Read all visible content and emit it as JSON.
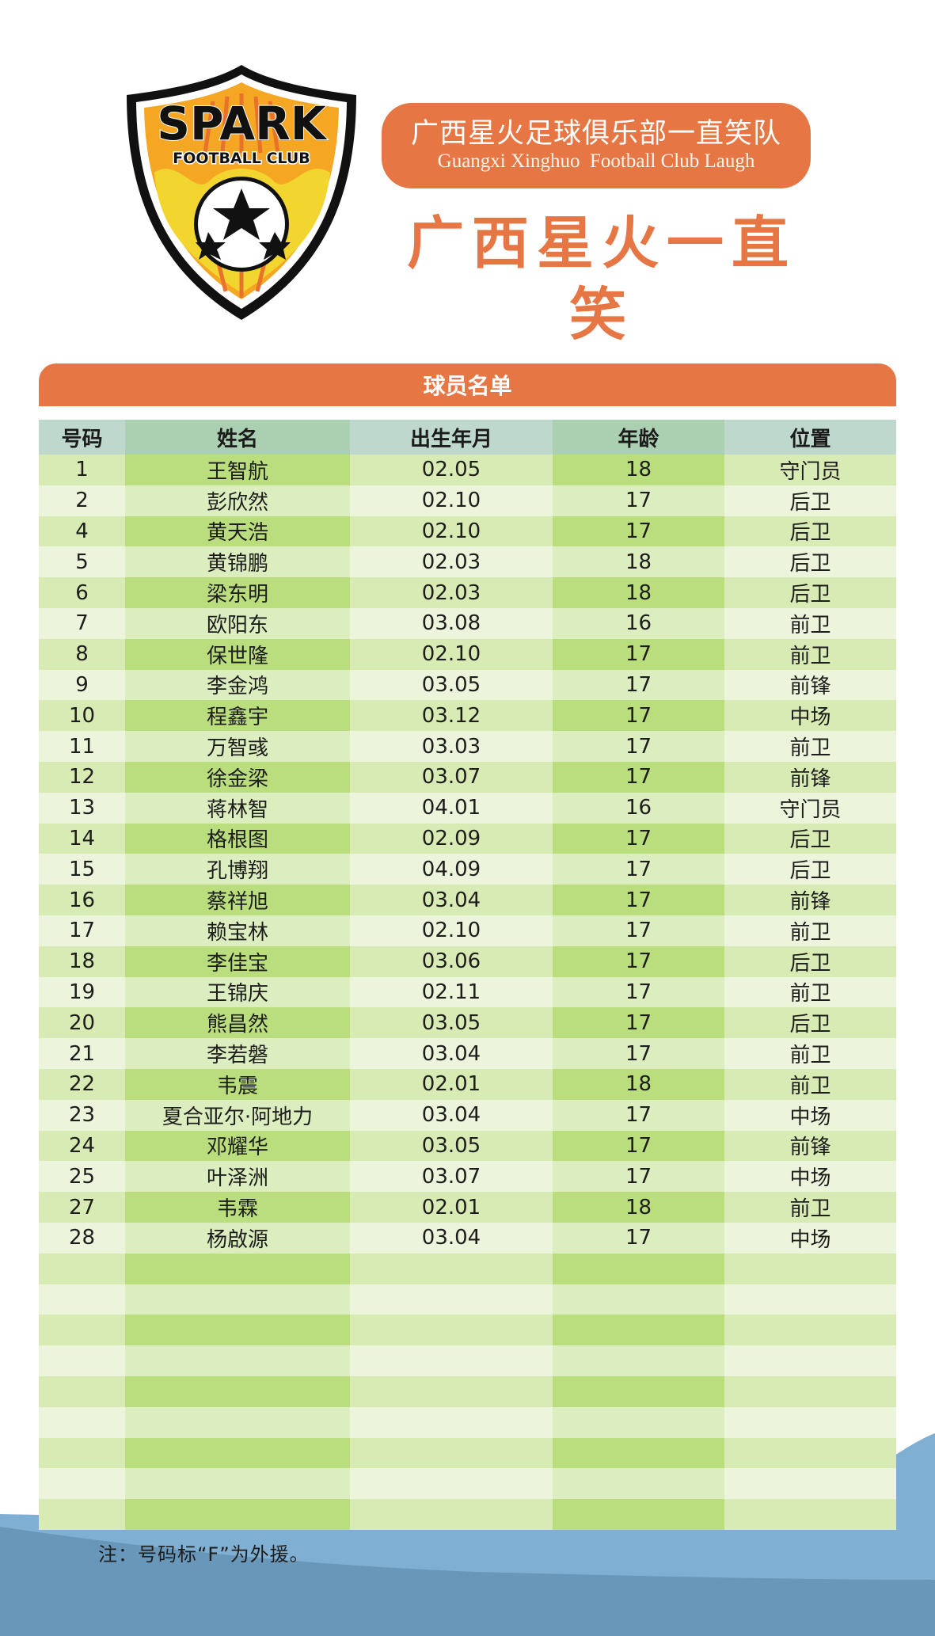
{
  "colors": {
    "accent_orange": "#e67744",
    "header_cell_a": "#bed8cd",
    "header_cell_b": "#abcfb1",
    "row_dark_a": "#d9ebb4",
    "row_dark_b": "#badd7d",
    "row_light_a": "#ecf5db",
    "row_light_b": "#dcedc0",
    "wave_light_blue": "#7fafd3",
    "wave_dark_blue": "#6897ba"
  },
  "logo": {
    "wordmark": "SPARK",
    "subtitle": "FOOTBALL CLUB",
    "icon": "shield-soccer-ball-crest"
  },
  "header": {
    "club_name_cn": "广西星火足球俱乐部一直笑队",
    "club_name_en": "Guangxi Xinghuo  Football Club Laugh",
    "team_title": "广西星火一直笑"
  },
  "roster": {
    "title": "球员名单",
    "columns": [
      "号码",
      "姓名",
      "出生年月",
      "年龄",
      "位置"
    ],
    "rows": [
      [
        "1",
        "王智航",
        "02.05",
        "18",
        "守门员"
      ],
      [
        "2",
        "彭欣然",
        "02.10",
        "17",
        "后卫"
      ],
      [
        "4",
        "黄天浩",
        "02.10",
        "17",
        "后卫"
      ],
      [
        "5",
        "黄锦鹏",
        "02.03",
        "18",
        "后卫"
      ],
      [
        "6",
        "梁东明",
        "02.03",
        "18",
        "后卫"
      ],
      [
        "7",
        "欧阳东",
        "03.08",
        "16",
        "前卫"
      ],
      [
        "8",
        "保世隆",
        "02.10",
        "17",
        "前卫"
      ],
      [
        "9",
        "李金鸿",
        "03.05",
        "17",
        "前锋"
      ],
      [
        "10",
        "程鑫宇",
        "03.12",
        "17",
        "中场"
      ],
      [
        "11",
        "万智彧",
        "03.03",
        "17",
        "前卫"
      ],
      [
        "12",
        "徐金梁",
        "03.07",
        "17",
        "前锋"
      ],
      [
        "13",
        "蒋林智",
        "04.01",
        "16",
        "守门员"
      ],
      [
        "14",
        "格根图",
        "02.09",
        "17",
        "后卫"
      ],
      [
        "15",
        "孔博翔",
        "04.09",
        "17",
        "后卫"
      ],
      [
        "16",
        "蔡祥旭",
        "03.04",
        "17",
        "前锋"
      ],
      [
        "17",
        "赖宝林",
        "02.10",
        "17",
        "前卫"
      ],
      [
        "18",
        "李佳宝",
        "03.06",
        "17",
        "后卫"
      ],
      [
        "19",
        "王锦庆",
        "02.11",
        "17",
        "前卫"
      ],
      [
        "20",
        "熊昌然",
        "03.05",
        "17",
        "后卫"
      ],
      [
        "21",
        "李若磐",
        "03.04",
        "17",
        "前卫"
      ],
      [
        "22",
        "韦震",
        "02.01",
        "18",
        "前卫"
      ],
      [
        "23",
        "夏合亚尔·阿地力",
        "03.04",
        "17",
        "中场"
      ],
      [
        "24",
        "邓耀华",
        "03.05",
        "17",
        "前锋"
      ],
      [
        "25",
        "叶泽洲",
        "03.07",
        "17",
        "中场"
      ],
      [
        "27",
        "韦霖",
        "02.01",
        "18",
        "前卫"
      ],
      [
        "28",
        "杨啟源",
        "03.04",
        "17",
        "中场"
      ],
      [
        "",
        "",
        "",
        "",
        ""
      ],
      [
        "",
        "",
        "",
        "",
        ""
      ],
      [
        "",
        "",
        "",
        "",
        ""
      ],
      [
        "",
        "",
        "",
        "",
        ""
      ],
      [
        "",
        "",
        "",
        "",
        ""
      ],
      [
        "",
        "",
        "",
        "",
        ""
      ],
      [
        "",
        "",
        "",
        "",
        ""
      ],
      [
        "",
        "",
        "",
        "",
        ""
      ],
      [
        "",
        "",
        "",
        "",
        ""
      ]
    ]
  },
  "footer": {
    "note": "注：号码标“F”为外援。"
  }
}
